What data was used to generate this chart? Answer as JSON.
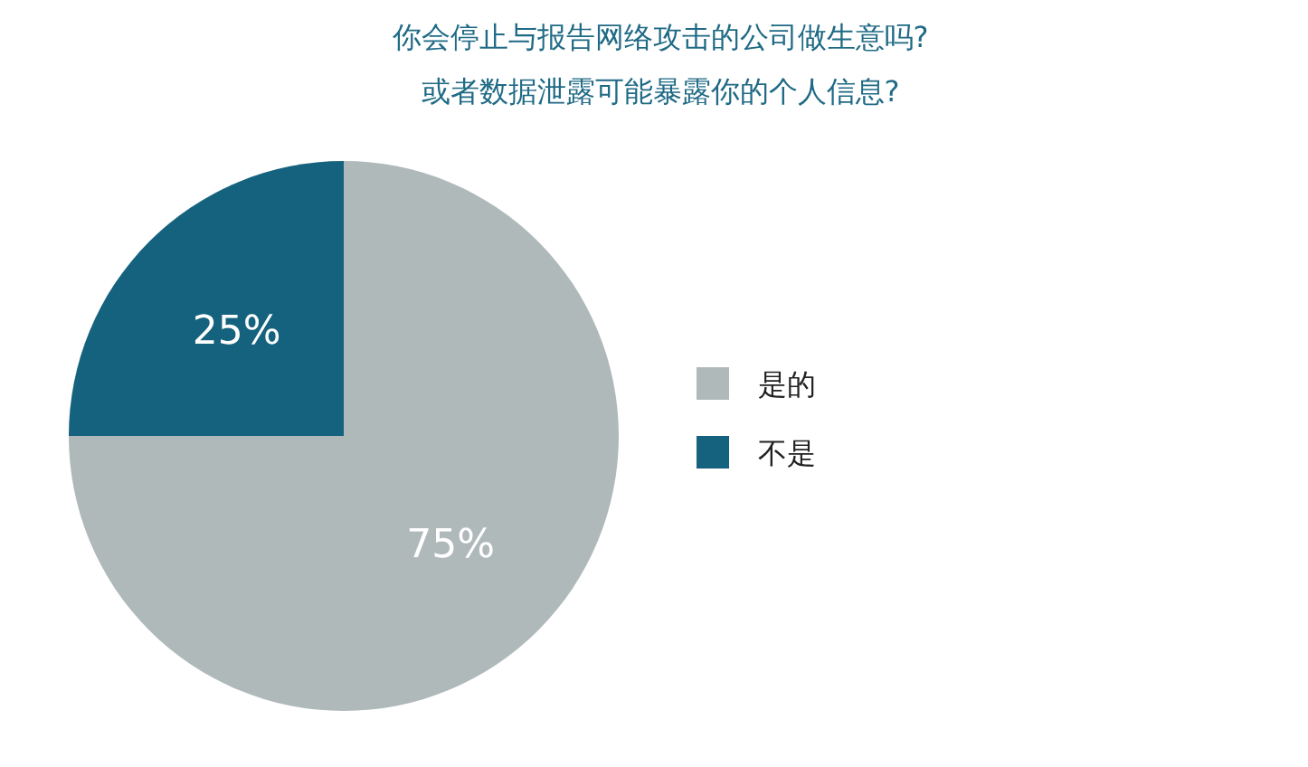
{
  "chart_data": {
    "type": "pie",
    "title": "你会停止与报告网络攻击的公司做生意吗?\n或者数据泄露可能暴露你的个人信息?",
    "categories": [
      "是的",
      "不是"
    ],
    "values": [
      75,
      25
    ],
    "colors": [
      "#b0b9ba",
      "#15627e"
    ],
    "value_labels": [
      "75%",
      "25%"
    ],
    "legend": "right"
  }
}
